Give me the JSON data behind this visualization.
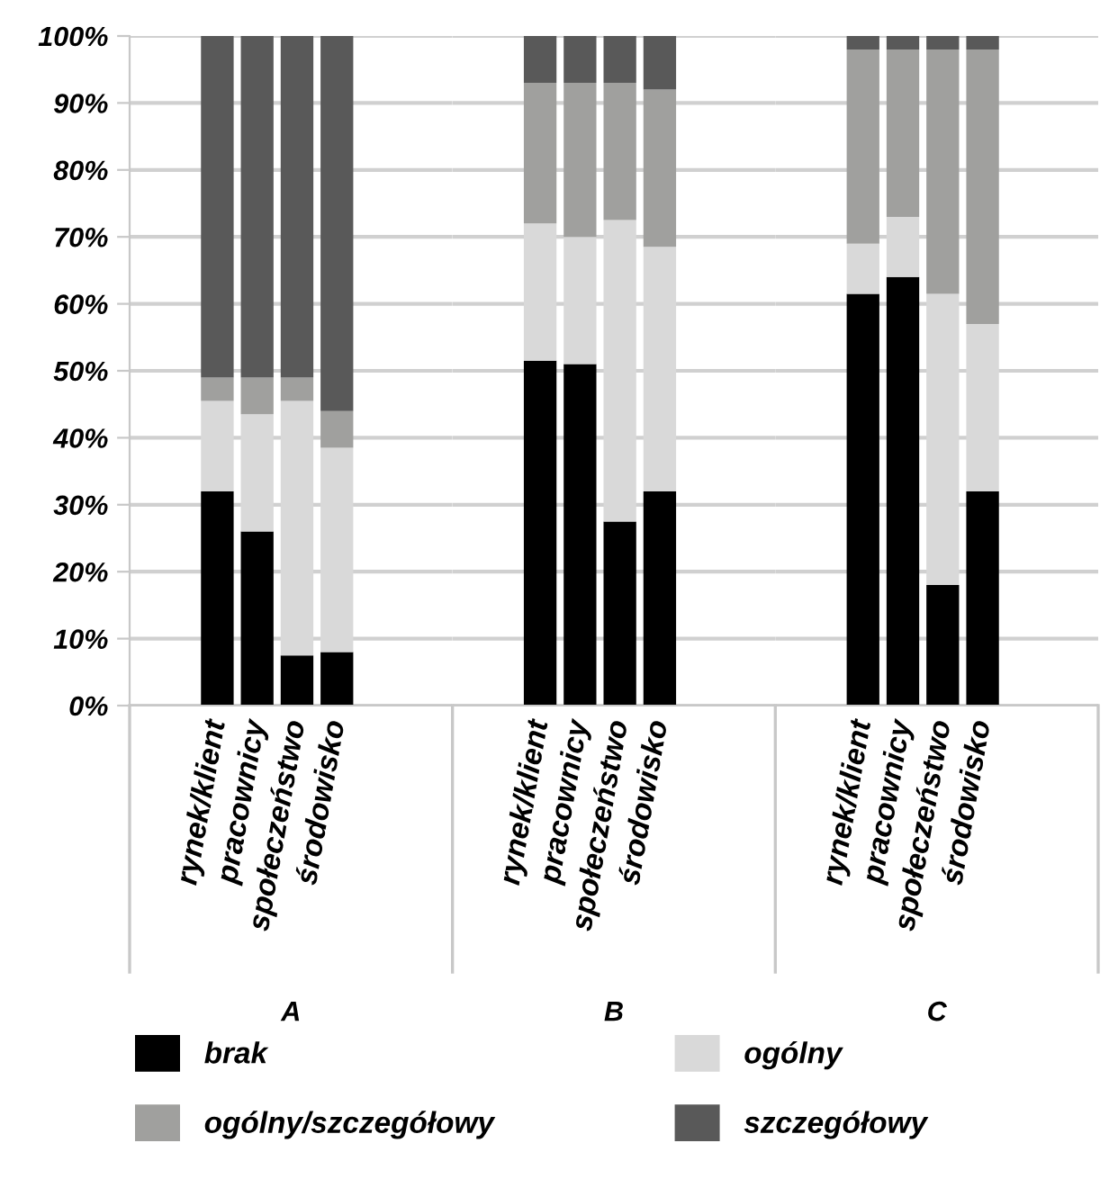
{
  "chart_data": [
    {
      "type": "bar",
      "stacked": true,
      "xlabel": "A",
      "legend": "bottom",
      "grid": "y",
      "categories": [
        "rynek/klient",
        "pracownicy",
        "społeczeństwo",
        "środowisko"
      ],
      "series": [
        {
          "name": "brak",
          "color": "#000000",
          "values": [
            32,
            26,
            7.5,
            8
          ]
        },
        {
          "name": "ogólny",
          "color": "#d9d9d9",
          "values": [
            13.5,
            17.5,
            38,
            30.5
          ]
        },
        {
          "name": "ogólny/szczegółowy",
          "color": "#a0a09e",
          "values": [
            3.5,
            5.5,
            3.5,
            5.5
          ]
        },
        {
          "name": "szczegółowy",
          "color": "#595959",
          "values": [
            51,
            51,
            51,
            56
          ]
        }
      ],
      "ylim": [
        0,
        100
      ],
      "yticks": [
        {
          "value": 0,
          "label": "0%"
        },
        {
          "value": 10,
          "label": "10%"
        },
        {
          "value": 20,
          "label": "20%"
        },
        {
          "value": 30,
          "label": "30%"
        },
        {
          "value": 40,
          "label": "40%"
        },
        {
          "value": 50,
          "label": "50%"
        },
        {
          "value": 60,
          "label": "60%"
        },
        {
          "value": 70,
          "label": "70%"
        },
        {
          "value": 80,
          "label": "80%"
        },
        {
          "value": 90,
          "label": "90%"
        },
        {
          "value": 100,
          "label": "100%"
        }
      ]
    },
    {
      "type": "bar",
      "stacked": true,
      "xlabel": "B",
      "grid": "y",
      "tick_labels": "x",
      "categories": [
        "rynek/klient",
        "pracownicy",
        "społeczeństwo",
        "środowisko"
      ],
      "series": [
        {
          "color": "#000000",
          "values": [
            51.5,
            51,
            27.5,
            32
          ]
        },
        {
          "color": "#d9d9d9",
          "values": [
            20.5,
            19,
            45,
            36.5
          ]
        },
        {
          "color": "#a0a09e",
          "values": [
            21,
            23,
            20.5,
            23.5
          ]
        },
        {
          "color": "#595959",
          "values": [
            7,
            7,
            7,
            8
          ]
        }
      ],
      "ylim": [
        0,
        100
      ],
      "yticks": [
        0,
        10,
        20,
        30,
        40,
        50,
        60,
        70,
        80,
        90,
        100
      ]
    },
    {
      "type": "bar",
      "stacked": true,
      "xlabel": "C",
      "grid": "y",
      "tick_labels": "x",
      "categories": [
        "rynek/klient",
        "pracownicy",
        "społeczeństwo",
        "środowisko"
      ],
      "series": [
        {
          "color": "#000000",
          "values": [
            61.5,
            64,
            18,
            32
          ]
        },
        {
          "color": "#d9d9d9",
          "values": [
            7.5,
            9,
            43.5,
            25
          ]
        },
        {
          "color": "#a0a09e",
          "values": [
            29,
            25,
            36.5,
            41
          ]
        },
        {
          "color": "#595959",
          "values": [
            2,
            2,
            2,
            2
          ]
        }
      ],
      "ylim": [
        0,
        100
      ],
      "yticks": [
        0,
        10,
        20,
        30,
        40,
        50,
        60,
        70,
        80,
        90,
        100
      ]
    }
  ]
}
